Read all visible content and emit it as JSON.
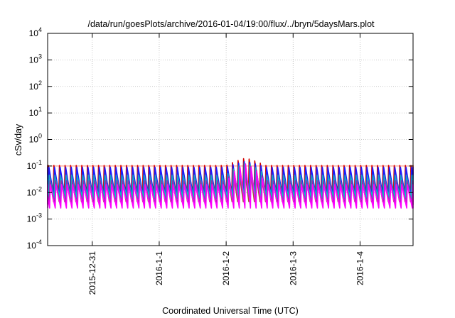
{
  "chart_data": {
    "type": "line",
    "title": "/data/run/goesPlots/archive/2016-01-04/19:00/flux/../bryn/5daysMars.plot",
    "xlabel": "Coordinated Universal Time (UTC)",
    "ylabel": "cSv/day",
    "y_scale": "log",
    "ylim": [
      0.0001,
      10000
    ],
    "y_ticks": [
      {
        "mantissa": "10",
        "exp": "-4"
      },
      {
        "mantissa": "10",
        "exp": "-3"
      },
      {
        "mantissa": "10",
        "exp": "-2"
      },
      {
        "mantissa": "10",
        "exp": "-1"
      },
      {
        "mantissa": "10",
        "exp": "0"
      },
      {
        "mantissa": "10",
        "exp": "1"
      },
      {
        "mantissa": "10",
        "exp": "2"
      },
      {
        "mantissa": "10",
        "exp": "3"
      },
      {
        "mantissa": "10",
        "exp": "4"
      }
    ],
    "xlim": [
      "2015-12-30T08:00",
      "2016-01-04T19:00"
    ],
    "x_ticks": [
      {
        "label": "2015-12-31",
        "value": "2015-12-31T00:00"
      },
      {
        "label": "2016-1-1",
        "value": "2016-01-01T00:00"
      },
      {
        "label": "2016-1-2",
        "value": "2016-01-02T00:00"
      },
      {
        "label": "2016-1-3",
        "value": "2016-01-03T00:00"
      },
      {
        "label": "2016-1-4",
        "value": "2016-01-04T00:00"
      }
    ],
    "grid": true,
    "pattern": "sawtooth",
    "cycle_hours": 2,
    "reference_line": {
      "y": 0.1,
      "color": "#ff8a7a"
    },
    "enhancement": {
      "start": "2016-01-02T00:00",
      "end": "2016-01-02T14:00",
      "peak_y": 0.2
    },
    "series": [
      {
        "color": "#d40000",
        "peak": 0.105,
        "trough": 0.0095
      },
      {
        "color": "#a06030",
        "peak": 0.06,
        "trough": 0.0045
      },
      {
        "color": "#1a1aff",
        "peak": 0.09,
        "trough": 0.007
      },
      {
        "color": "#19a0c0",
        "peak": 0.045,
        "trough": 0.006
      },
      {
        "color": "#00c8c8",
        "peak": 0.03,
        "trough": 0.0065
      },
      {
        "color": "#9a2aa8",
        "peak": 0.028,
        "trough": 0.0035
      },
      {
        "color": "#ff00ff",
        "peak": 0.02,
        "trough": 0.0026
      }
    ]
  }
}
